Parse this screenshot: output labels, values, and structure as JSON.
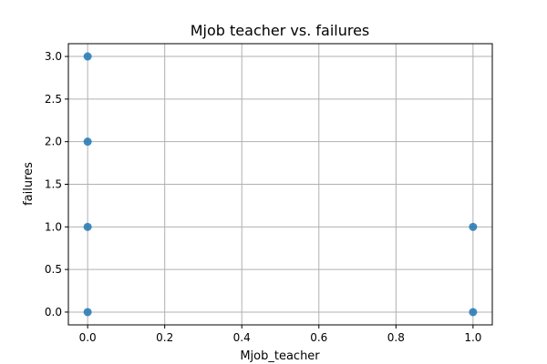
{
  "chart_data": {
    "type": "scatter",
    "title": "Mjob teacher vs. failures",
    "xlabel": "Mjob_teacher",
    "ylabel": "failures",
    "xlim": [
      -0.05,
      1.05
    ],
    "ylim": [
      -0.15,
      3.15
    ],
    "xticks": [
      0.0,
      0.2,
      0.4,
      0.6,
      0.8,
      1.0
    ],
    "xtick_labels": [
      "0.0",
      "0.2",
      "0.4",
      "0.6",
      "0.8",
      "1.0"
    ],
    "yticks": [
      0.0,
      0.5,
      1.0,
      1.5,
      2.0,
      2.5,
      3.0
    ],
    "ytick_labels": [
      "0.0",
      "0.5",
      "1.0",
      "1.5",
      "2.0",
      "2.5",
      "3.0"
    ],
    "grid": true,
    "marker_color": "#1f77b4",
    "points": [
      {
        "x": 0,
        "y": 3
      },
      {
        "x": 0,
        "y": 2
      },
      {
        "x": 0,
        "y": 1
      },
      {
        "x": 0,
        "y": 0
      },
      {
        "x": 1,
        "y": 1
      },
      {
        "x": 1,
        "y": 0
      }
    ]
  }
}
